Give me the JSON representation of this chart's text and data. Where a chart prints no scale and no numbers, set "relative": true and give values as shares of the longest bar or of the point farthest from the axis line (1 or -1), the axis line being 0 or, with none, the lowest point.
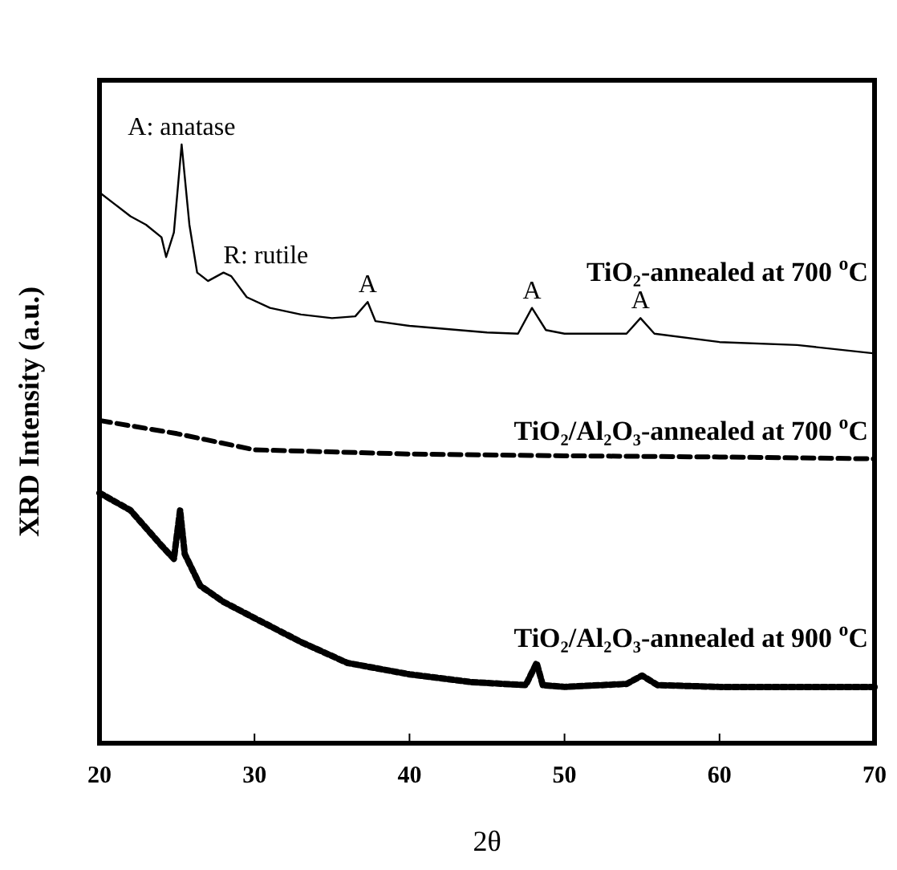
{
  "chart_data": {
    "type": "line",
    "relative": true,
    "xlabel": "2θ",
    "ylabel": "XRD Intensity (a.u.)",
    "xlim": [
      20,
      70
    ],
    "xticks": [
      20,
      30,
      40,
      50,
      60,
      70
    ],
    "tick_labels": "x",
    "grid": false,
    "series": [
      {
        "name": "TiO₂-annealed at 700 $^{o}$C",
        "color": "#000000",
        "line_style": "solid",
        "x": [
          20,
          21,
          22,
          23,
          24,
          24.3,
          24.8,
          25.3,
          25.8,
          26.3,
          27,
          28,
          28.5,
          29.5,
          31,
          33,
          35,
          36.5,
          37.3,
          37.8,
          40,
          45,
          47,
          47.9,
          48.8,
          50,
          54,
          54.9,
          55.8,
          60,
          65,
          70
        ],
        "values": [
          0.92,
          0.9,
          0.88,
          0.866,
          0.845,
          0.812,
          0.853,
          1.0,
          0.866,
          0.786,
          0.772,
          0.786,
          0.78,
          0.745,
          0.727,
          0.716,
          0.71,
          0.713,
          0.737,
          0.705,
          0.697,
          0.686,
          0.684,
          0.727,
          0.69,
          0.684,
          0.684,
          0.71,
          0.684,
          0.67,
          0.665,
          0.651
        ]
      },
      {
        "name": "TiO₂/Al₂O₃-annealed at 700 $^{o}$C",
        "color": "#000000",
        "line_style": "dashed",
        "x": [
          20,
          25,
          30,
          40,
          50,
          60,
          70
        ],
        "values": [
          0.539,
          0.517,
          0.49,
          0.483,
          0.48,
          0.478,
          0.475
        ]
      },
      {
        "name": "TiO₂/Al₂O₃-annealed at 900 $^{o}$C",
        "color": "#000000",
        "line_style": "dotted",
        "x": [
          20,
          22,
          24,
          24.8,
          25.2,
          25.5,
          26.5,
          28,
          30,
          33,
          36,
          40,
          44,
          47.5,
          48.2,
          48.6,
          50,
          54,
          55,
          56,
          60,
          70
        ],
        "values": [
          0.418,
          0.389,
          0.33,
          0.308,
          0.389,
          0.316,
          0.263,
          0.236,
          0.209,
          0.169,
          0.134,
          0.115,
          0.102,
          0.097,
          0.134,
          0.097,
          0.094,
          0.099,
          0.113,
          0.097,
          0.094,
          0.094
        ]
      }
    ],
    "annotations": [
      {
        "text": "A: anatase",
        "x": 25.3,
        "y": 1.0
      },
      {
        "text": "R: rutile",
        "x": 28,
        "y": 0.786
      },
      {
        "text": "A",
        "x": 37.3,
        "y": 0.737
      },
      {
        "text": "A",
        "x": 47.9,
        "y": 0.727
      },
      {
        "text": "A",
        "x": 54.9,
        "y": 0.71
      }
    ]
  }
}
